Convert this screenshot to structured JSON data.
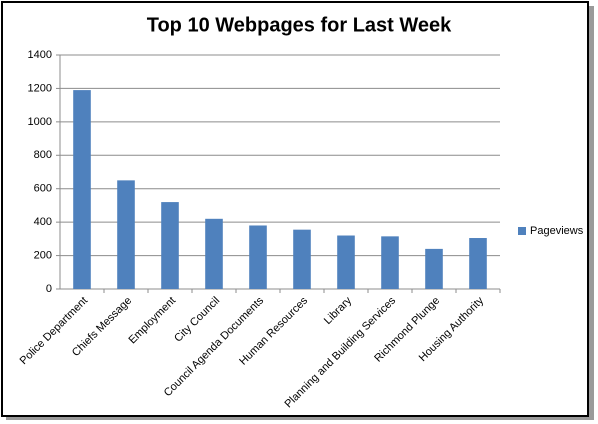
{
  "chart_data": {
    "type": "bar",
    "title": "Top 10 Webpages for Last Week",
    "categories": [
      "Police Department",
      "Chiefs Message",
      "Employment",
      "City Council",
      "Council Agenda Documents",
      "Human Resources",
      "Library",
      "Planning and Building Services",
      "Richmond Plunge",
      "Housing Authority"
    ],
    "series": [
      {
        "name": "Pageviews",
        "color": "#4f81bd",
        "values": [
          1190,
          650,
          520,
          420,
          380,
          355,
          320,
          315,
          240,
          305
        ]
      }
    ],
    "ylim": [
      0,
      1400
    ],
    "yticks": [
      0,
      200,
      400,
      600,
      800,
      1000,
      1200,
      1400
    ],
    "grid": true,
    "legend": "right"
  }
}
